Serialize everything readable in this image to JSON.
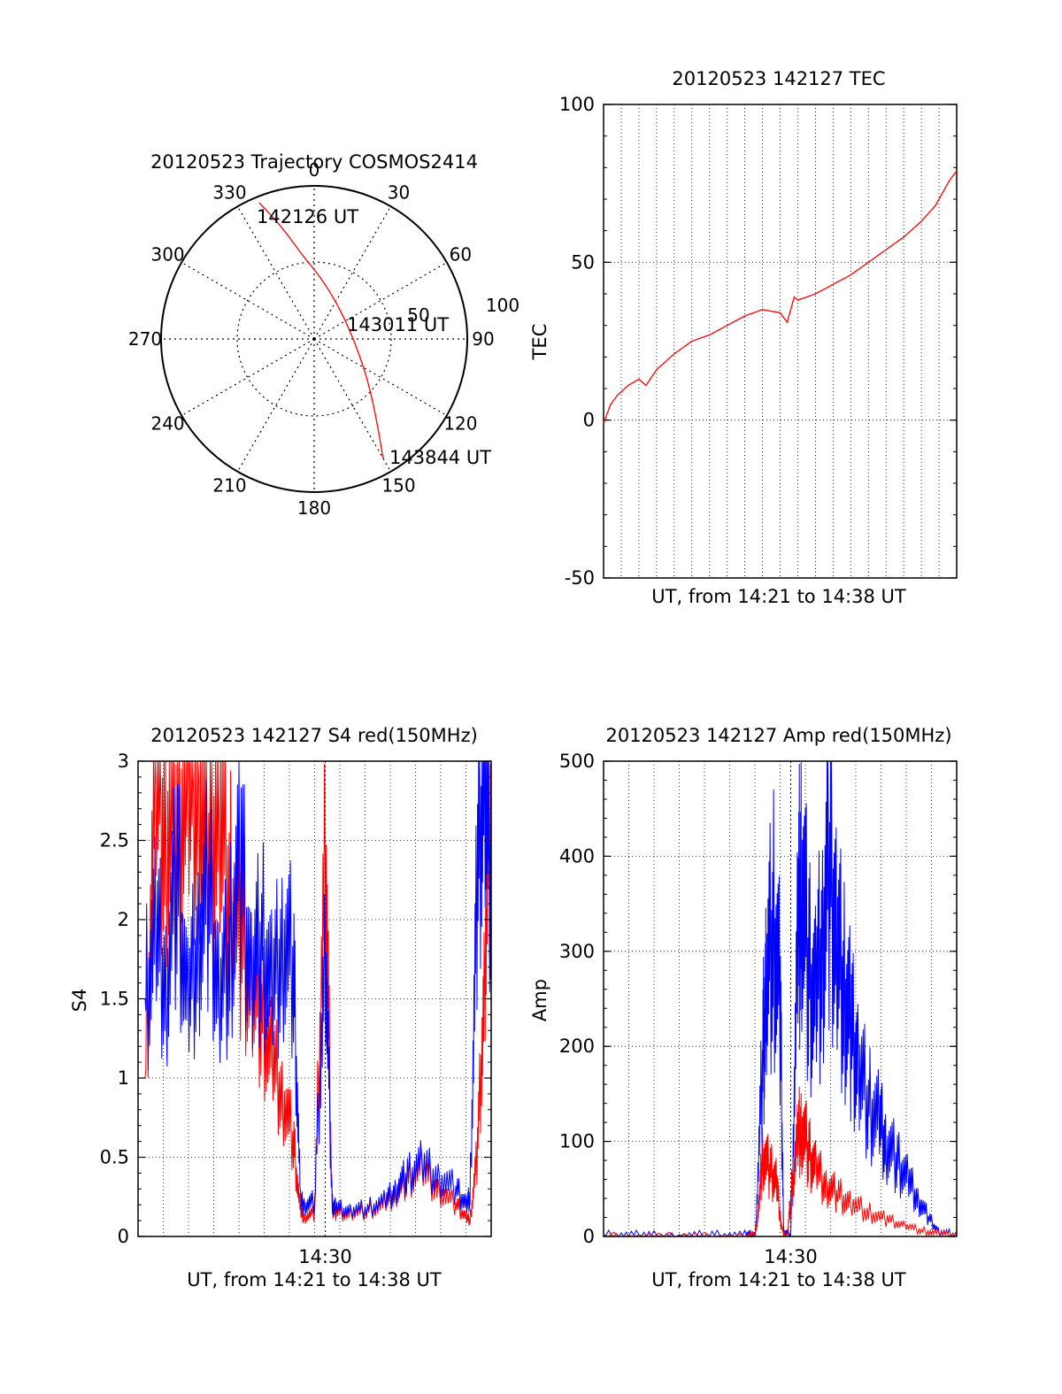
{
  "colors": {
    "red": "#ff0000",
    "blue": "#0000ff",
    "axis": "#000000",
    "grid": "#000000"
  },
  "chart_data": [
    {
      "id": "trajectory",
      "type": "polar",
      "title": "20120523 Trajectory COSMOS2414",
      "angle_labels": [
        "0",
        "30",
        "60",
        "90",
        "120",
        "150",
        "180",
        "210",
        "240",
        "270",
        "300",
        "330"
      ],
      "radius_labels": [
        "50",
        "100"
      ],
      "rlim": [
        0,
        100
      ],
      "track": [
        {
          "az": 338,
          "zen": 96
        },
        {
          "az": 344,
          "zen": 76
        },
        {
          "az": 352,
          "zen": 55
        },
        {
          "az": 10,
          "zen": 38
        },
        {
          "az": 60,
          "zen": 24
        },
        {
          "az": 120,
          "zen": 38
        },
        {
          "az": 140,
          "zen": 62
        },
        {
          "az": 150,
          "zen": 90
        }
      ],
      "annotations": [
        {
          "text": "142126 UT",
          "az": 340,
          "zen": 92
        },
        {
          "text": "143011 UT",
          "az": 72,
          "zen": 42
        },
        {
          "text": "143844 UT",
          "az": 147,
          "zen": 97
        }
      ]
    },
    {
      "id": "tec",
      "type": "line",
      "title": "20120523 142127 TEC",
      "xlabel": "UT, from 14:21 to 14:38 UT",
      "ylabel": "TEC",
      "xlim": [
        0,
        1
      ],
      "ylim": [
        -50,
        100
      ],
      "yticks": [
        "-50",
        "0",
        "50",
        "100"
      ],
      "series": [
        {
          "color": "red",
          "x": [
            0,
            0.02,
            0.04,
            0.07,
            0.1,
            0.12,
            0.15,
            0.2,
            0.25,
            0.3,
            0.35,
            0.4,
            0.45,
            0.5,
            0.52,
            0.54,
            0.55,
            0.6,
            0.65,
            0.7,
            0.75,
            0.8,
            0.85,
            0.9,
            0.94,
            0.96,
            0.98,
            1.0
          ],
          "y": [
            -1,
            5,
            8,
            11,
            13,
            11,
            16,
            21,
            25,
            27,
            30,
            33,
            35,
            34,
            31,
            39,
            38,
            40,
            43,
            46,
            50,
            54,
            58,
            63,
            68,
            72,
            76,
            79
          ]
        }
      ]
    },
    {
      "id": "s4",
      "type": "line",
      "title": "20120523 142127 S4 red(150MHz)",
      "xlabel": "UT, from 14:21 to 14:38 UT",
      "ylabel": "S4",
      "xlim": [
        0,
        1
      ],
      "ylim": [
        0,
        3
      ],
      "yticks": [
        "0",
        "0.5",
        "1",
        "1.5",
        "2",
        "2.5",
        "3"
      ],
      "xticks": [
        "14:30"
      ],
      "xtick_values": [
        0.53
      ],
      "series": [
        {
          "color": "blue",
          "x": [
            0.02,
            0.05,
            0.08,
            0.11,
            0.14,
            0.17,
            0.2,
            0.23,
            0.26,
            0.29,
            0.32,
            0.35,
            0.38,
            0.41,
            0.44,
            0.46,
            0.47,
            0.5,
            0.53,
            0.55,
            0.56,
            0.6,
            0.65,
            0.7,
            0.73,
            0.76,
            0.8,
            0.85,
            0.9,
            0.93,
            0.94,
            0.96,
            0.98,
            1.0
          ],
          "y": [
            1.5,
            1.9,
            1.6,
            2.3,
            1.4,
            1.9,
            2.2,
            1.5,
            1.8,
            2.4,
            1.6,
            1.9,
            1.5,
            1.9,
            1.7,
            0.22,
            0.2,
            0.22,
            1.8,
            0.2,
            0.18,
            0.16,
            0.18,
            0.22,
            0.3,
            0.38,
            0.45,
            0.38,
            0.3,
            0.2,
            0.25,
            2.2,
            3.0,
            2.2
          ]
        },
        {
          "color": "red",
          "x": [
            0.02,
            0.05,
            0.08,
            0.11,
            0.14,
            0.17,
            0.2,
            0.23,
            0.26,
            0.29,
            0.32,
            0.35,
            0.38,
            0.41,
            0.44,
            0.46,
            0.47,
            0.5,
            0.53,
            0.55,
            0.56,
            0.6,
            0.65,
            0.7,
            0.73,
            0.76,
            0.8,
            0.85,
            0.9,
            0.93,
            0.94,
            0.96,
            0.98,
            1.0
          ],
          "y": [
            1.0,
            2.9,
            2.6,
            2.8,
            2.7,
            2.9,
            2.5,
            2.7,
            2.2,
            1.9,
            1.6,
            1.4,
            1.1,
            0.9,
            0.6,
            0.15,
            0.12,
            0.15,
            2.5,
            0.18,
            0.15,
            0.14,
            0.16,
            0.2,
            0.28,
            0.35,
            0.42,
            0.3,
            0.2,
            0.12,
            0.1,
            0.5,
            1.5,
            3.0
          ]
        }
      ]
    },
    {
      "id": "amp",
      "type": "line",
      "title": "20120523 142127 Amp red(150MHz)",
      "xlabel": "UT, from 14:21 to 14:38 UT",
      "ylabel": "Amp",
      "xlim": [
        0,
        1
      ],
      "ylim": [
        0,
        500
      ],
      "yticks": [
        "0",
        "100",
        "200",
        "300",
        "400",
        "500"
      ],
      "xticks": [
        "14:30"
      ],
      "xtick_values": [
        0.53
      ],
      "series": [
        {
          "color": "blue",
          "x": [
            0.0,
            0.1,
            0.2,
            0.3,
            0.4,
            0.43,
            0.45,
            0.46,
            0.48,
            0.5,
            0.51,
            0.53,
            0.55,
            0.56,
            0.58,
            0.6,
            0.62,
            0.64,
            0.66,
            0.68,
            0.7,
            0.72,
            0.75,
            0.78,
            0.8,
            0.83,
            0.86,
            0.89,
            0.92,
            0.95,
            1.0
          ],
          "y": [
            2,
            2,
            1,
            2,
            2,
            3,
            180,
            260,
            330,
            250,
            5,
            2,
            300,
            400,
            280,
            240,
            320,
            400,
            310,
            260,
            220,
            180,
            140,
            120,
            100,
            80,
            60,
            40,
            20,
            5,
            2
          ]
        },
        {
          "color": "red",
          "x": [
            0.0,
            0.2,
            0.4,
            0.43,
            0.44,
            0.45,
            0.47,
            0.49,
            0.5,
            0.51,
            0.52,
            0.53,
            0.55,
            0.56,
            0.58,
            0.6,
            0.63,
            0.66,
            0.7,
            0.75,
            0.8,
            0.85,
            0.9,
            0.95,
            1.0
          ],
          "y": [
            0,
            0,
            0,
            2,
            30,
            90,
            70,
            60,
            20,
            0,
            0,
            40,
            100,
            120,
            90,
            70,
            55,
            45,
            35,
            25,
            18,
            12,
            6,
            3,
            1
          ]
        }
      ]
    }
  ]
}
